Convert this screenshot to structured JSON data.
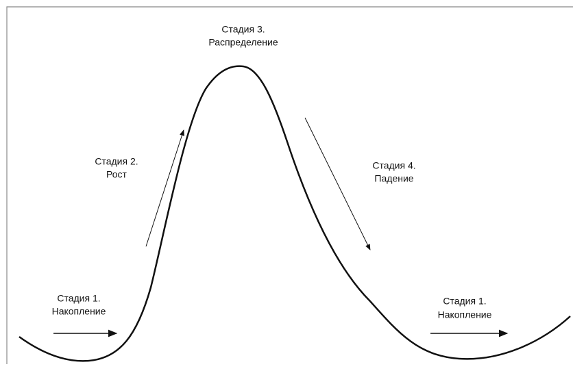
{
  "stages": [
    {
      "title": "Стадия 1.",
      "name": "Накопление"
    },
    {
      "title": "Стадия 2.",
      "name": "Рост"
    },
    {
      "title": "Стадия 3.",
      "name": "Распределение"
    },
    {
      "title": "Стадия 4.",
      "name": "Падение"
    },
    {
      "title": "Стадия 1.",
      "name": "Накопление"
    }
  ]
}
